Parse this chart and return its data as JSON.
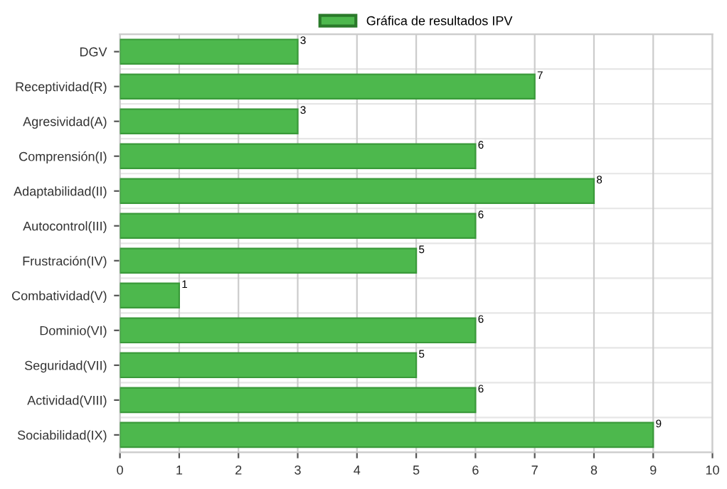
{
  "chart_data": {
    "type": "bar",
    "orientation": "horizontal",
    "categories": [
      "DGV",
      "Receptividad(R)",
      "Agresividad(A)",
      "Comprensión(I)",
      "Adaptabilidad(II)",
      "Autocontrol(III)",
      "Frustración(IV)",
      "Combatividad(V)",
      "Dominio(VI)",
      "Seguridad(VII)",
      "Actividad(VIII)",
      "Sociabilidad(IX)"
    ],
    "series": [
      {
        "name": "Gráfica de resultados IPV",
        "color": "#4db84d",
        "values": [
          3,
          7,
          3,
          6,
          8,
          6,
          5,
          1,
          6,
          5,
          6,
          9
        ]
      }
    ],
    "xlim": [
      0,
      10
    ],
    "xticks": [
      0,
      1,
      2,
      3,
      4,
      5,
      6,
      7,
      8,
      9,
      10
    ],
    "grid": true,
    "legend": "top",
    "data_labels": true
  }
}
